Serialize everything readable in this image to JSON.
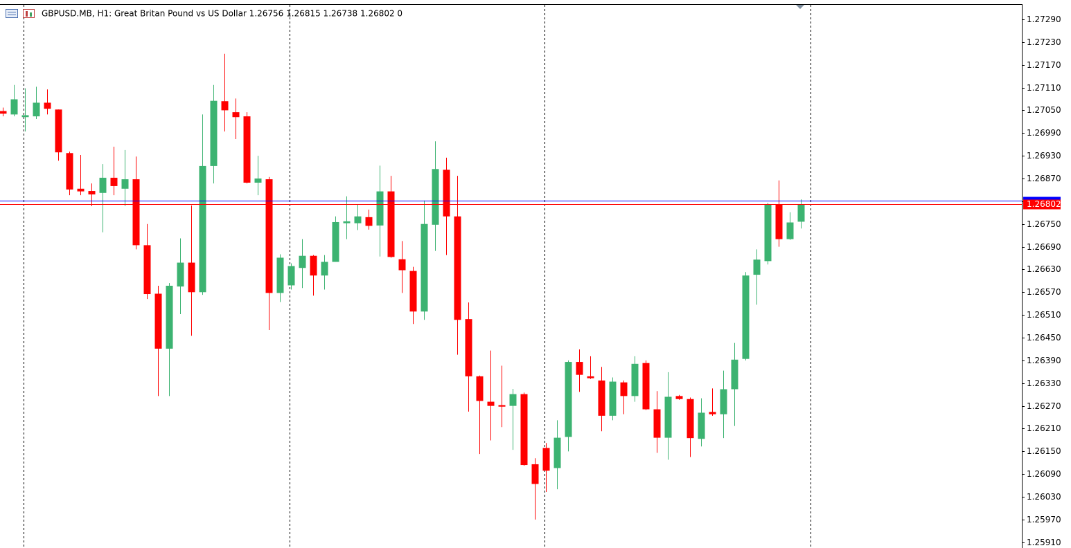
{
  "chart_data": {
    "type": "candlestick",
    "title": "GBPUSD.MB, H1:  Great Britan Pound vs US Dollar  1.26756 1.26815 1.26738 1.26802  0",
    "open": [
      1.27048,
      1.27039,
      1.27032,
      1.27034,
      1.2707,
      1.27052,
      1.26937,
      1.26843,
      1.26837,
      1.26832,
      1.26872,
      1.26843,
      1.26868,
      1.26694,
      1.26566,
      1.26421,
      1.26585,
      1.26648,
      1.2657,
      1.26903,
      1.27074,
      1.27045,
      1.27034,
      1.26859,
      1.26868,
      1.26568,
      1.26588,
      1.26634,
      1.26666,
      1.26614,
      1.2665,
      1.26752,
      1.26752,
      1.26768,
      1.26746,
      1.26836,
      1.26657,
      1.26626,
      1.26519,
      1.26748,
      1.26893,
      1.2677,
      1.26499,
      1.26348,
      1.26281,
      1.26272,
      1.2627,
      1.26301,
      1.26116,
      1.26159,
      1.26106,
      1.26188,
      1.26386,
      1.26348,
      1.26337,
      1.26244,
      1.26332,
      1.26296,
      1.26383,
      1.26261,
      1.26186,
      1.26296,
      1.26288,
      1.26183,
      1.26254,
      1.26248,
      1.26314,
      1.26394,
      1.26616,
      1.26652,
      1.26801,
      1.2671,
      1.26756
    ],
    "high": [
      1.27057,
      1.27117,
      1.27108,
      1.27112,
      1.27105,
      1.27052,
      1.26941,
      1.26932,
      1.26857,
      1.26908,
      1.26954,
      1.26945,
      1.26928,
      1.2675,
      1.26587,
      1.26594,
      1.26712,
      1.26799,
      1.27039,
      1.27117,
      1.27199,
      1.27081,
      1.27045,
      1.2693,
      1.26874,
      1.2667,
      1.26646,
      1.2671,
      1.26668,
      1.26668,
      1.2677,
      1.26823,
      1.26801,
      1.26788,
      1.26904,
      1.26877,
      1.26705,
      1.26637,
      1.26812,
      1.26968,
      1.26925,
      1.26877,
      1.26543,
      1.2635,
      1.26416,
      1.26376,
      1.26315,
      1.26305,
      1.26132,
      1.26172,
      1.26232,
      1.2639,
      1.26419,
      1.26401,
      1.26373,
      1.26345,
      1.26337,
      1.26401,
      1.2639,
      1.26309,
      1.26359,
      1.26299,
      1.26292,
      1.2629,
      1.26316,
      1.26363,
      1.26436,
      1.26623,
      1.26683,
      1.26806,
      1.26865,
      1.26781,
      1.26815
    ],
    "low": [
      1.27034,
      1.27034,
      1.26994,
      1.27027,
      1.27039,
      1.26917,
      1.26826,
      1.26826,
      1.26797,
      1.26728,
      1.26826,
      1.26797,
      1.26683,
      1.26552,
      1.26296,
      1.26296,
      1.26512,
      1.26455,
      1.26563,
      1.26857,
      1.26994,
      1.26974,
      1.26857,
      1.26826,
      1.2647,
      1.26544,
      1.26577,
      1.26581,
      1.26561,
      1.26577,
      1.2665,
      1.2671,
      1.26734,
      1.26735,
      1.26664,
      1.26661,
      1.26568,
      1.26486,
      1.26497,
      1.26679,
      1.26668,
      1.26405,
      1.26255,
      1.26143,
      1.26179,
      1.26214,
      1.26154,
      1.26112,
      1.2597,
      1.26043,
      1.2605,
      1.2615,
      1.26307,
      1.26341,
      1.26203,
      1.26232,
      1.26248,
      1.26281,
      1.26259,
      1.26146,
      1.26128,
      1.26286,
      1.26135,
      1.26163,
      1.26244,
      1.26185,
      1.26217,
      1.2639,
      1.26537,
      1.26643,
      1.2669,
      1.26708,
      1.26738
    ],
    "close": [
      1.27041,
      1.27079,
      1.27037,
      1.2707,
      1.27054,
      1.26939,
      1.26841,
      1.26836,
      1.26828,
      1.26872,
      1.2685,
      1.26868,
      1.26694,
      1.26565,
      1.26421,
      1.26587,
      1.26648,
      1.2657,
      1.26903,
      1.27075,
      1.2705,
      1.27032,
      1.26859,
      1.2687,
      1.26568,
      1.26661,
      1.26639,
      1.26666,
      1.26614,
      1.2665,
      1.26755,
      1.26757,
      1.2677,
      1.26745,
      1.26836,
      1.26663,
      1.26628,
      1.26519,
      1.2675,
      1.26895,
      1.2677,
      1.26497,
      1.26348,
      1.26283,
      1.2627,
      1.26268,
      1.26301,
      1.26114,
      1.26064,
      1.26099,
      1.26186,
      1.26386,
      1.26352,
      1.26343,
      1.26244,
      1.26334,
      1.26296,
      1.26381,
      1.26261,
      1.26186,
      1.26294,
      1.26288,
      1.26185,
      1.26252,
      1.26248,
      1.26314,
      1.26392,
      1.26614,
      1.26656,
      1.26801,
      1.2671,
      1.26754,
      1.26802
    ],
    "up_color": "#3cb371",
    "down_color": "#ff0000",
    "bid": 1.26802,
    "bid_color": "#ff0000",
    "ask": 1.26812,
    "ask_color": "#0000ff",
    "ylim": [
      1.25895,
      1.27341
    ],
    "yticks": [
      {
        "value": 1.2729,
        "label": "1.27290"
      },
      {
        "value": 1.2723,
        "label": "1.27230"
      },
      {
        "value": 1.2717,
        "label": "1.27170"
      },
      {
        "value": 1.2711,
        "label": "1.27110"
      },
      {
        "value": 1.2705,
        "label": "1.27050"
      },
      {
        "value": 1.2699,
        "label": "1.26990"
      },
      {
        "value": 1.2693,
        "label": "1.26930"
      },
      {
        "value": 1.2687,
        "label": "1.26870"
      },
      {
        "value": 1.2681,
        "label": "1.26810"
      },
      {
        "value": 1.2675,
        "label": "1.26750"
      },
      {
        "value": 1.2669,
        "label": "1.26690"
      },
      {
        "value": 1.2663,
        "label": "1.26630"
      },
      {
        "value": 1.2657,
        "label": "1.26570"
      },
      {
        "value": 1.2651,
        "label": "1.26510"
      },
      {
        "value": 1.2645,
        "label": "1.26450"
      },
      {
        "value": 1.2639,
        "label": "1.26390"
      },
      {
        "value": 1.2633,
        "label": "1.26330"
      },
      {
        "value": 1.2627,
        "label": "1.26270"
      },
      {
        "value": 1.2621,
        "label": "1.26210"
      },
      {
        "value": 1.2615,
        "label": "1.26150"
      },
      {
        "value": 1.2609,
        "label": "1.26090"
      },
      {
        "value": 1.2603,
        "label": "1.26030"
      },
      {
        "value": 1.2597,
        "label": "1.25970"
      },
      {
        "value": 1.2591,
        "label": "1.25910"
      }
    ]
  }
}
